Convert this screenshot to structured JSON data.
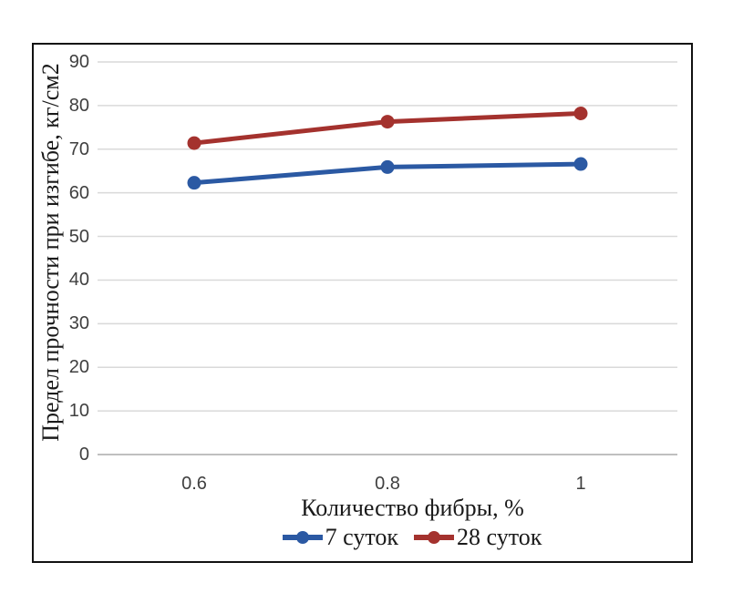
{
  "colors": {
    "series_blue": "#2B59A3",
    "series_red": "#A4322E",
    "gridline": "#D9D9D9",
    "axis_line": "#BFBFBF",
    "frame_border": "#111111",
    "tick_text": "#3F3F3F",
    "title_text": "#1A1A1A"
  },
  "chart_data": {
    "type": "line",
    "categories": [
      "0.6",
      "0.8",
      "1"
    ],
    "series": [
      {
        "name": "7 суток",
        "color": "#2B59A3",
        "values": [
          62.3,
          65.9,
          66.6
        ]
      },
      {
        "name": "28 суток",
        "color": "#A4322E",
        "values": [
          71.4,
          76.3,
          78.2
        ]
      }
    ],
    "xlabel": "Количество фибры, %",
    "ylabel": "Предел прочности при изгибе, кг/см2",
    "ylim": [
      0,
      90
    ],
    "ytick_step": 10,
    "yticks": [
      0,
      10,
      20,
      30,
      40,
      50,
      60,
      70,
      80,
      90
    ],
    "grid": true,
    "legend_position": "bottom-center",
    "marker": "circle"
  }
}
